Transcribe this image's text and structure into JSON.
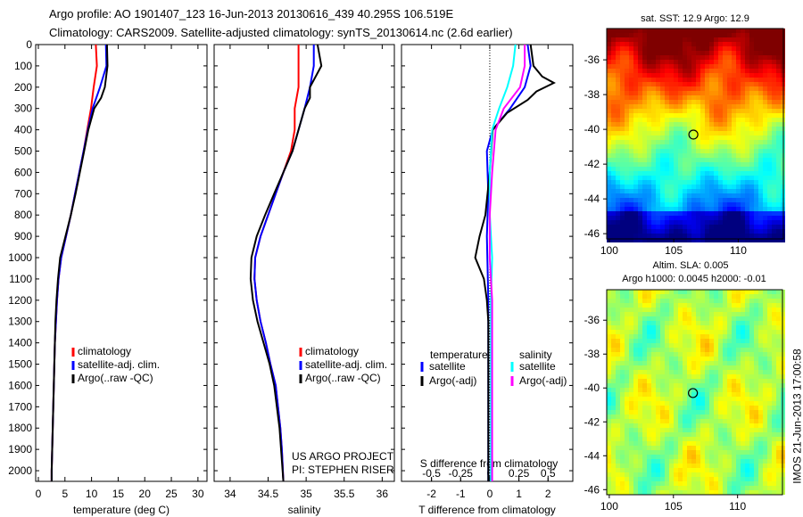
{
  "title_line1": "Argo profile: AO 1901407_123 16-Jun-2013 20130616_439 40.295S 106.519E",
  "title_line2": "Climatology: CARS2009. Satellite-adjusted climatology: synTS_20130614.nc (2.6d earlier)",
  "project_line1": "US ARGO PROJECT",
  "project_line2": "PI: STEPHEN RISER",
  "timestamp": "IMOS 21-Jun-2013 17:00:58",
  "colors": {
    "climatology": "#ff0000",
    "satellite": "#0000ff",
    "argo": "#000000",
    "sal_satellite": "#00ffff",
    "sal_argo": "#ff00ff"
  },
  "chart_data": [
    {
      "type": "line",
      "id": "temperature",
      "xlabel": "temperature (deg C)",
      "ylabel": "",
      "xlim": [
        -0.5,
        31.7
      ],
      "ylim": [
        2050,
        0
      ],
      "xticks": [
        0,
        5,
        10,
        15,
        20,
        25,
        30
      ],
      "yticks": [
        0,
        100,
        200,
        300,
        400,
        500,
        600,
        700,
        800,
        900,
        1000,
        1100,
        1200,
        1300,
        1400,
        1500,
        1600,
        1700,
        1800,
        1900,
        2000
      ],
      "legend": [
        "climatology",
        "satellite-adj. clim.",
        "Argo(..raw -QC)"
      ],
      "series": [
        {
          "name": "climatology",
          "color": "#ff0000",
          "depth": [
            0,
            100,
            200,
            300,
            400,
            500,
            600,
            700,
            800,
            900,
            1000,
            1100,
            1200,
            1300,
            1400,
            1600,
            1800,
            2000,
            2050
          ],
          "values": [
            10.8,
            11,
            10.4,
            9.9,
            9.2,
            8.5,
            7.7,
            6.9,
            6.1,
            5.2,
            4.3,
            3.8,
            3.5,
            3.3,
            3.1,
            2.9,
            2.7,
            2.5,
            2.5
          ]
        },
        {
          "name": "satellite-adj. clim.",
          "color": "#0000ff",
          "depth": [
            0,
            100,
            200,
            300,
            400,
            500,
            600,
            700,
            800,
            900,
            1000,
            1100,
            1200,
            1300,
            1400,
            1600,
            1800,
            2000,
            2050
          ],
          "values": [
            12.7,
            12.8,
            11.6,
            10.2,
            9.3,
            8.5,
            7.7,
            6.9,
            6.1,
            5.2,
            4.3,
            3.8,
            3.5,
            3.3,
            3.1,
            2.9,
            2.7,
            2.5,
            2.5
          ]
        },
        {
          "name": "Argo(..raw -QC)",
          "color": "#000000",
          "depth": [
            0,
            100,
            200,
            250,
            300,
            400,
            500,
            600,
            700,
            800,
            900,
            1000,
            1100,
            1200,
            1300,
            1400,
            1600,
            1800,
            2000,
            2050
          ],
          "values": [
            12.9,
            13,
            12.5,
            11.8,
            10.5,
            9.4,
            8.6,
            7.8,
            7,
            6.1,
            5.1,
            4.1,
            3.7,
            3.4,
            3.2,
            3.1,
            2.9,
            2.7,
            2.5,
            2.5
          ]
        }
      ]
    },
    {
      "type": "line",
      "id": "salinity",
      "xlabel": "salinity",
      "xlim": [
        33.79,
        36.16
      ],
      "ylim": [
        2050,
        0
      ],
      "xticks": [
        34,
        34.5,
        35,
        35.5,
        36
      ],
      "legend": [
        "climatology",
        "satellite-adj. clim.",
        "Argo(..raw -QC)"
      ],
      "series": [
        {
          "name": "climatology",
          "color": "#ff0000",
          "depth": [
            0,
            100,
            200,
            300,
            400,
            500,
            600,
            700,
            800,
            900,
            1000,
            1100,
            1200,
            1300,
            1400,
            1500,
            1600,
            1700,
            1800,
            1900,
            2050
          ],
          "values": [
            34.9,
            34.9,
            34.9,
            34.85,
            34.85,
            34.8,
            34.7,
            34.6,
            34.5,
            34.4,
            34.33,
            34.32,
            34.35,
            34.4,
            34.47,
            34.53,
            34.6,
            34.63,
            34.66,
            34.68,
            34.7
          ]
        },
        {
          "name": "satellite-adj. clim.",
          "color": "#0000ff",
          "depth": [
            0,
            100,
            200,
            300,
            400,
            500,
            600,
            700,
            800,
            900,
            1000,
            1100,
            1200,
            1300,
            1400,
            1500,
            1600,
            1700,
            1800,
            1900,
            2050
          ],
          "values": [
            35.1,
            35.1,
            35.05,
            34.98,
            34.9,
            34.82,
            34.7,
            34.6,
            34.5,
            34.4,
            34.33,
            34.32,
            34.35,
            34.4,
            34.47,
            34.53,
            34.6,
            34.63,
            34.66,
            34.68,
            34.7
          ]
        },
        {
          "name": "Argo(..raw -QC)",
          "color": "#000000",
          "depth": [
            0,
            100,
            200,
            250,
            300,
            400,
            500,
            600,
            700,
            800,
            900,
            1000,
            1100,
            1200,
            1300,
            1400,
            1500,
            1600,
            1800,
            2050
          ],
          "values": [
            35.15,
            35.2,
            35.05,
            35.05,
            34.98,
            34.9,
            34.82,
            34.7,
            34.58,
            34.46,
            34.35,
            34.28,
            34.27,
            34.3,
            34.36,
            34.44,
            34.52,
            34.58,
            34.65,
            34.7
          ]
        }
      ]
    },
    {
      "type": "line",
      "id": "difference",
      "xlabel": "T difference from climatology",
      "x2label": "S difference from climatology",
      "xlim": [
        -3.03,
        2.85
      ],
      "ylim": [
        2050,
        0
      ],
      "xticks": [
        -2,
        -1,
        0,
        1,
        2
      ],
      "x2ticks": [
        -0.5,
        -0.25,
        0,
        0.25,
        0.5
      ],
      "x2tick_labels": [
        "-0.5",
        "-0.25",
        "0",
        "0.25",
        "0.5"
      ],
      "legend_temperature": "temperature",
      "legend_salinity": "salinity",
      "legend_items": [
        "satellite",
        "Argo(-adj)",
        "satellite",
        "Argo(-adj)"
      ],
      "series": [
        {
          "name": "T satellite",
          "color": "#0000ff",
          "quantity": "T",
          "depth": [
            0,
            100,
            200,
            300,
            400,
            500,
            700,
            900,
            1200,
            1600,
            2050
          ],
          "values": [
            1.3,
            1.4,
            1.2,
            0.7,
            0.1,
            -0.1,
            -0.05,
            -0.1,
            -0.05,
            -0.05,
            -0.05
          ]
        },
        {
          "name": "T Argo(-adj)",
          "color": "#000000",
          "quantity": "T",
          "depth": [
            0,
            100,
            150,
            180,
            220,
            260,
            320,
            400,
            600,
            800,
            900,
            1000,
            1100,
            1200,
            1300,
            1600,
            2050
          ],
          "values": [
            1.4,
            1.5,
            1.8,
            2.2,
            1.6,
            1.3,
            0.6,
            0.1,
            0,
            -0.15,
            -0.35,
            -0.5,
            -0.2,
            -0.1,
            -0.05,
            -0.05,
            -0.05
          ]
        },
        {
          "name": "S satellite",
          "color": "#00ffff",
          "quantity": "S",
          "depth": [
            0,
            100,
            200,
            300,
            400,
            600,
            800,
            1000,
            1200,
            1600,
            2050
          ],
          "values": [
            0.22,
            0.2,
            0.15,
            0.08,
            0.02,
            0.0,
            0.0,
            0.02,
            0.01,
            0.01,
            0.01
          ]
        },
        {
          "name": "S Argo(-adj)",
          "color": "#ff00ff",
          "quantity": "S",
          "depth": [
            0,
            100,
            200,
            300,
            400,
            600,
            800,
            1000,
            1200,
            1600,
            2050
          ],
          "values": [
            0.3,
            0.3,
            0.26,
            0.12,
            0.05,
            0.02,
            0.0,
            0.0,
            0.02,
            0.02,
            0.02
          ]
        }
      ]
    },
    {
      "type": "heatmap",
      "id": "sst_map",
      "title": "sat. SST: 12.9 Argo: 12.9",
      "xlim": [
        99.8,
        113.5
      ],
      "ylim": [
        -46.3,
        -34.2
      ],
      "xticks": [
        100,
        105,
        110
      ],
      "yticks": [
        -36,
        -38,
        -40,
        -42,
        -44,
        -46
      ],
      "marker": {
        "lon": 106.52,
        "lat": -40.3
      }
    },
    {
      "type": "heatmap",
      "id": "sla_map",
      "title": "Altim. SLA: 0.005",
      "subtitle": "Argo h1000: 0.0045 h2000: -0.01",
      "xlim": [
        99.8,
        113.5
      ],
      "ylim": [
        -46.3,
        -34.2
      ],
      "xticks": [
        100,
        105,
        110
      ],
      "yticks": [
        -36,
        -38,
        -40,
        -42,
        -44,
        -46
      ],
      "marker": {
        "lon": 106.52,
        "lat": -40.3
      }
    }
  ]
}
